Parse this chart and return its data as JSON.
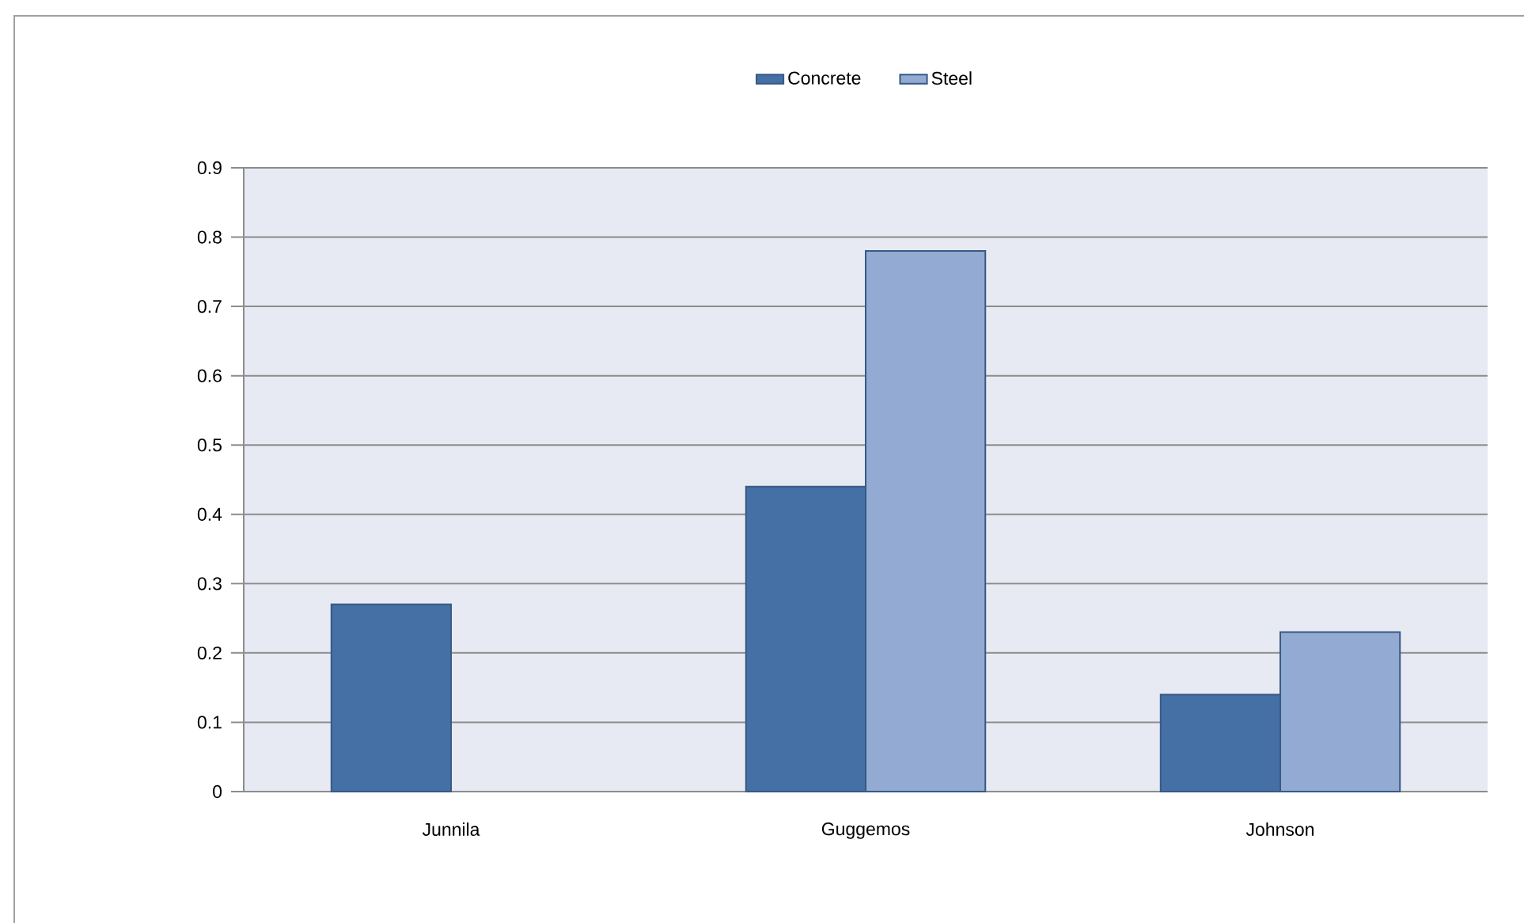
{
  "chart_data": {
    "type": "bar",
    "categories": [
      "Junnila",
      "Guggemos",
      "Johnson"
    ],
    "series": [
      {
        "name": "Concrete",
        "color": "#4570a5",
        "values": [
          0.27,
          0.44,
          0.14
        ]
      },
      {
        "name": "Steel",
        "color": "#93aad2",
        "values": [
          null,
          0.78,
          0.23
        ]
      }
    ],
    "ylim": [
      0,
      0.9
    ],
    "yticks": [
      0,
      0.1,
      0.2,
      0.3,
      0.4,
      0.5,
      0.6,
      0.7,
      0.8,
      0.9
    ],
    "grid": "y",
    "legend": "top"
  }
}
